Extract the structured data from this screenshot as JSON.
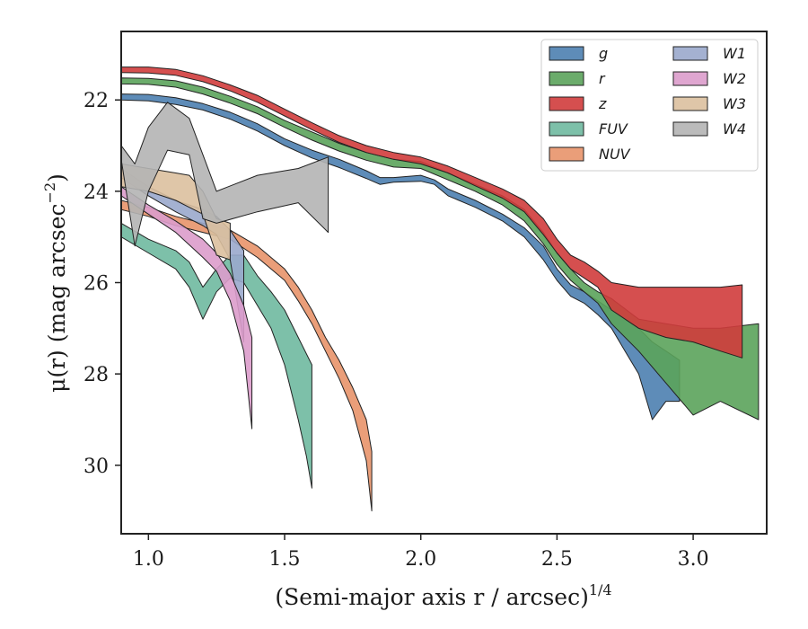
{
  "chart_data": {
    "type": "area",
    "xlabel": "(Semi-major axis r / arcsec)",
    "xlabel_italic_symbol": "r",
    "xlabel_exponent": "1/4",
    "ylabel": "μ(r) (mag arcsec",
    "ylabel_exponent": "−2",
    "ylabel_close": ")",
    "xlim": [
      0.9,
      3.27
    ],
    "ylim": [
      31.5,
      20.5
    ],
    "y_inverted": true,
    "xticks": [
      1.0,
      1.5,
      2.0,
      2.5,
      3.0
    ],
    "xtick_labels": [
      "1.0",
      "1.5",
      "2.0",
      "2.5",
      "3.0"
    ],
    "yticks": [
      22,
      24,
      26,
      28,
      30
    ],
    "ytick_labels": [
      "22",
      "24",
      "26",
      "28",
      "30"
    ],
    "grid": false,
    "legend_position": "top-right",
    "legend_columns": 2,
    "series": [
      {
        "name": "g",
        "color": "#4C7FB0",
        "upper": [
          [
            0.9,
            21.87
          ],
          [
            1.0,
            21.88
          ],
          [
            1.1,
            21.95
          ],
          [
            1.2,
            22.08
          ],
          [
            1.3,
            22.27
          ],
          [
            1.4,
            22.52
          ],
          [
            1.5,
            22.85
          ],
          [
            1.6,
            23.1
          ],
          [
            1.7,
            23.3
          ],
          [
            1.8,
            23.55
          ],
          [
            1.85,
            23.7
          ],
          [
            1.9,
            23.7
          ],
          [
            2.0,
            23.65
          ],
          [
            2.05,
            23.75
          ],
          [
            2.1,
            23.95
          ],
          [
            2.2,
            24.2
          ],
          [
            2.3,
            24.5
          ],
          [
            2.38,
            24.8
          ],
          [
            2.45,
            25.2
          ],
          [
            2.5,
            25.7
          ],
          [
            2.55,
            26.05
          ],
          [
            2.6,
            26.2
          ],
          [
            2.65,
            26.4
          ],
          [
            2.7,
            26.6
          ],
          [
            2.75,
            26.8
          ],
          [
            2.8,
            27.0
          ],
          [
            2.85,
            27.3
          ],
          [
            2.9,
            27.5
          ],
          [
            2.95,
            27.7
          ]
        ],
        "lower": [
          [
            0.9,
            22.0
          ],
          [
            1.0,
            22.02
          ],
          [
            1.1,
            22.1
          ],
          [
            1.2,
            22.22
          ],
          [
            1.3,
            22.42
          ],
          [
            1.4,
            22.68
          ],
          [
            1.5,
            23.0
          ],
          [
            1.6,
            23.27
          ],
          [
            1.7,
            23.48
          ],
          [
            1.8,
            23.72
          ],
          [
            1.85,
            23.85
          ],
          [
            1.9,
            23.8
          ],
          [
            2.0,
            23.78
          ],
          [
            2.05,
            23.85
          ],
          [
            2.1,
            24.1
          ],
          [
            2.2,
            24.35
          ],
          [
            2.3,
            24.65
          ],
          [
            2.38,
            25.0
          ],
          [
            2.45,
            25.5
          ],
          [
            2.5,
            25.95
          ],
          [
            2.55,
            26.3
          ],
          [
            2.6,
            26.45
          ],
          [
            2.65,
            26.7
          ],
          [
            2.7,
            27.0
          ],
          [
            2.75,
            27.5
          ],
          [
            2.8,
            28.0
          ],
          [
            2.85,
            29.0
          ],
          [
            2.9,
            28.6
          ],
          [
            2.95,
            28.6
          ]
        ]
      },
      {
        "name": "r",
        "color": "#5BA35B",
        "upper": [
          [
            0.9,
            21.52
          ],
          [
            1.0,
            21.53
          ],
          [
            1.1,
            21.58
          ],
          [
            1.2,
            21.72
          ],
          [
            1.3,
            21.92
          ],
          [
            1.4,
            22.15
          ],
          [
            1.5,
            22.45
          ],
          [
            1.6,
            22.7
          ],
          [
            1.7,
            22.95
          ],
          [
            1.8,
            23.15
          ],
          [
            1.9,
            23.3
          ],
          [
            2.0,
            23.35
          ],
          [
            2.1,
            23.6
          ],
          [
            2.2,
            23.85
          ],
          [
            2.3,
            24.1
          ],
          [
            2.38,
            24.4
          ],
          [
            2.45,
            24.9
          ],
          [
            2.5,
            25.35
          ],
          [
            2.55,
            25.7
          ],
          [
            2.6,
            26.0
          ],
          [
            2.65,
            26.2
          ],
          [
            2.7,
            26.35
          ],
          [
            2.8,
            26.8
          ],
          [
            2.9,
            26.9
          ],
          [
            3.0,
            27.0
          ],
          [
            3.1,
            27.0
          ],
          [
            3.24,
            26.9
          ]
        ],
        "lower": [
          [
            0.9,
            21.65
          ],
          [
            1.0,
            21.66
          ],
          [
            1.1,
            21.72
          ],
          [
            1.2,
            21.87
          ],
          [
            1.3,
            22.07
          ],
          [
            1.4,
            22.3
          ],
          [
            1.5,
            22.6
          ],
          [
            1.6,
            22.88
          ],
          [
            1.7,
            23.12
          ],
          [
            1.8,
            23.32
          ],
          [
            1.9,
            23.47
          ],
          [
            2.0,
            23.5
          ],
          [
            2.1,
            23.75
          ],
          [
            2.2,
            24.0
          ],
          [
            2.3,
            24.3
          ],
          [
            2.38,
            24.65
          ],
          [
            2.45,
            25.15
          ],
          [
            2.5,
            25.6
          ],
          [
            2.55,
            25.95
          ],
          [
            2.6,
            26.2
          ],
          [
            2.65,
            26.45
          ],
          [
            2.7,
            26.9
          ],
          [
            2.8,
            27.5
          ],
          [
            2.9,
            28.2
          ],
          [
            3.0,
            28.9
          ],
          [
            3.1,
            28.6
          ],
          [
            3.24,
            29.0
          ]
        ]
      },
      {
        "name": "z",
        "color": "#D03C3C",
        "upper": [
          [
            0.9,
            21.28
          ],
          [
            1.0,
            21.28
          ],
          [
            1.1,
            21.33
          ],
          [
            1.2,
            21.47
          ],
          [
            1.3,
            21.67
          ],
          [
            1.4,
            21.9
          ],
          [
            1.5,
            22.2
          ],
          [
            1.6,
            22.5
          ],
          [
            1.7,
            22.78
          ],
          [
            1.8,
            23.0
          ],
          [
            1.9,
            23.15
          ],
          [
            2.0,
            23.25
          ],
          [
            2.1,
            23.45
          ],
          [
            2.2,
            23.7
          ],
          [
            2.3,
            23.95
          ],
          [
            2.38,
            24.2
          ],
          [
            2.45,
            24.6
          ],
          [
            2.5,
            25.05
          ],
          [
            2.55,
            25.4
          ],
          [
            2.6,
            25.55
          ],
          [
            2.65,
            25.75
          ],
          [
            2.7,
            26.0
          ],
          [
            2.8,
            26.1
          ],
          [
            2.9,
            26.1
          ],
          [
            3.0,
            26.1
          ],
          [
            3.1,
            26.1
          ],
          [
            3.18,
            26.05
          ]
        ],
        "lower": [
          [
            0.9,
            21.4
          ],
          [
            1.0,
            21.41
          ],
          [
            1.1,
            21.46
          ],
          [
            1.2,
            21.6
          ],
          [
            1.3,
            21.8
          ],
          [
            1.4,
            22.05
          ],
          [
            1.5,
            22.35
          ],
          [
            1.6,
            22.65
          ],
          [
            1.7,
            22.93
          ],
          [
            1.8,
            23.15
          ],
          [
            1.9,
            23.3
          ],
          [
            2.0,
            23.4
          ],
          [
            2.1,
            23.6
          ],
          [
            2.2,
            23.88
          ],
          [
            2.3,
            24.15
          ],
          [
            2.38,
            24.45
          ],
          [
            2.45,
            24.95
          ],
          [
            2.5,
            25.35
          ],
          [
            2.55,
            25.7
          ],
          [
            2.6,
            25.9
          ],
          [
            2.65,
            26.1
          ],
          [
            2.7,
            26.6
          ],
          [
            2.8,
            27.0
          ],
          [
            2.9,
            27.2
          ],
          [
            3.0,
            27.3
          ],
          [
            3.1,
            27.5
          ],
          [
            3.18,
            27.65
          ]
        ]
      },
      {
        "name": "FUV",
        "color": "#6FB9A0",
        "upper": [
          [
            0.9,
            24.7
          ],
          [
            1.0,
            25.05
          ],
          [
            1.1,
            25.3
          ],
          [
            1.15,
            25.55
          ],
          [
            1.2,
            26.1
          ],
          [
            1.25,
            25.7
          ],
          [
            1.3,
            25.4
          ],
          [
            1.35,
            25.4
          ],
          [
            1.4,
            25.85
          ],
          [
            1.45,
            26.2
          ],
          [
            1.5,
            26.6
          ],
          [
            1.55,
            27.2
          ],
          [
            1.6,
            27.8
          ],
          [
            1.6,
            29.0
          ]
        ],
        "lower": [
          [
            0.9,
            25.0
          ],
          [
            1.0,
            25.35
          ],
          [
            1.1,
            25.7
          ],
          [
            1.15,
            26.1
          ],
          [
            1.2,
            26.8
          ],
          [
            1.25,
            26.2
          ],
          [
            1.3,
            25.9
          ],
          [
            1.35,
            26.0
          ],
          [
            1.4,
            26.5
          ],
          [
            1.45,
            27.0
          ],
          [
            1.5,
            27.8
          ],
          [
            1.55,
            29.0
          ],
          [
            1.58,
            29.8
          ],
          [
            1.6,
            30.5
          ]
        ]
      },
      {
        "name": "NUV",
        "color": "#E8936A",
        "upper": [
          [
            0.9,
            24.2
          ],
          [
            1.0,
            24.35
          ],
          [
            1.1,
            24.55
          ],
          [
            1.2,
            24.7
          ],
          [
            1.3,
            24.85
          ],
          [
            1.4,
            25.2
          ],
          [
            1.5,
            25.7
          ],
          [
            1.55,
            26.1
          ],
          [
            1.6,
            26.6
          ],
          [
            1.65,
            27.2
          ],
          [
            1.7,
            27.7
          ],
          [
            1.75,
            28.3
          ],
          [
            1.8,
            29.0
          ],
          [
            1.82,
            29.7
          ]
        ],
        "lower": [
          [
            0.9,
            24.4
          ],
          [
            1.0,
            24.55
          ],
          [
            1.1,
            24.75
          ],
          [
            1.2,
            24.9
          ],
          [
            1.3,
            25.05
          ],
          [
            1.4,
            25.45
          ],
          [
            1.5,
            25.95
          ],
          [
            1.55,
            26.4
          ],
          [
            1.6,
            26.9
          ],
          [
            1.65,
            27.5
          ],
          [
            1.7,
            28.1
          ],
          [
            1.75,
            28.8
          ],
          [
            1.8,
            29.9
          ],
          [
            1.82,
            31.0
          ]
        ]
      },
      {
        "name": "W1",
        "color": "#9AA8CC",
        "upper": [
          [
            0.9,
            23.5
          ],
          [
            1.0,
            23.9
          ],
          [
            1.1,
            24.2
          ],
          [
            1.15,
            24.3
          ],
          [
            1.2,
            24.4
          ],
          [
            1.25,
            24.55
          ],
          [
            1.3,
            24.85
          ],
          [
            1.35,
            25.3
          ]
        ],
        "lower": [
          [
            0.9,
            23.7
          ],
          [
            1.0,
            24.1
          ],
          [
            1.1,
            24.45
          ],
          [
            1.15,
            24.6
          ],
          [
            1.2,
            24.75
          ],
          [
            1.25,
            24.95
          ],
          [
            1.3,
            25.5
          ],
          [
            1.35,
            27.3
          ]
        ]
      },
      {
        "name": "W2",
        "color": "#DB9CCB",
        "upper": [
          [
            0.9,
            23.9
          ],
          [
            1.0,
            24.3
          ],
          [
            1.1,
            24.65
          ],
          [
            1.2,
            25.05
          ],
          [
            1.25,
            25.35
          ],
          [
            1.3,
            25.8
          ],
          [
            1.35,
            26.5
          ],
          [
            1.38,
            27.2
          ]
        ],
        "lower": [
          [
            0.9,
            24.1
          ],
          [
            1.0,
            24.5
          ],
          [
            1.1,
            24.9
          ],
          [
            1.2,
            25.45
          ],
          [
            1.25,
            25.75
          ],
          [
            1.3,
            26.4
          ],
          [
            1.35,
            27.5
          ],
          [
            1.38,
            29.2
          ]
        ]
      },
      {
        "name": "W3",
        "color": "#DCC09E",
        "upper": [
          [
            0.9,
            23.4
          ],
          [
            1.0,
            23.5
          ],
          [
            1.05,
            23.55
          ],
          [
            1.1,
            23.6
          ],
          [
            1.15,
            23.65
          ],
          [
            1.2,
            24.0
          ],
          [
            1.25,
            24.6
          ],
          [
            1.3,
            24.7
          ]
        ],
        "lower": [
          [
            0.9,
            23.9
          ],
          [
            1.0,
            24.0
          ],
          [
            1.05,
            24.1
          ],
          [
            1.1,
            24.2
          ],
          [
            1.15,
            24.35
          ],
          [
            1.2,
            24.5
          ],
          [
            1.25,
            25.4
          ],
          [
            1.3,
            25.5
          ]
        ]
      },
      {
        "name": "W4",
        "color": "#B4B4B4",
        "upper": [
          [
            0.9,
            23.0
          ],
          [
            0.95,
            23.4
          ],
          [
            1.0,
            22.6
          ],
          [
            1.07,
            22.05
          ],
          [
            1.15,
            22.4
          ],
          [
            1.2,
            23.2
          ],
          [
            1.25,
            24.0
          ],
          [
            1.4,
            23.65
          ],
          [
            1.55,
            23.5
          ],
          [
            1.66,
            23.25
          ]
        ],
        "lower": [
          [
            0.9,
            23.3
          ],
          [
            0.95,
            25.2
          ],
          [
            1.0,
            24.0
          ],
          [
            1.07,
            23.1
          ],
          [
            1.15,
            23.2
          ],
          [
            1.2,
            24.6
          ],
          [
            1.25,
            24.7
          ],
          [
            1.4,
            24.45
          ],
          [
            1.55,
            24.25
          ],
          [
            1.66,
            24.9
          ]
        ]
      }
    ]
  }
}
